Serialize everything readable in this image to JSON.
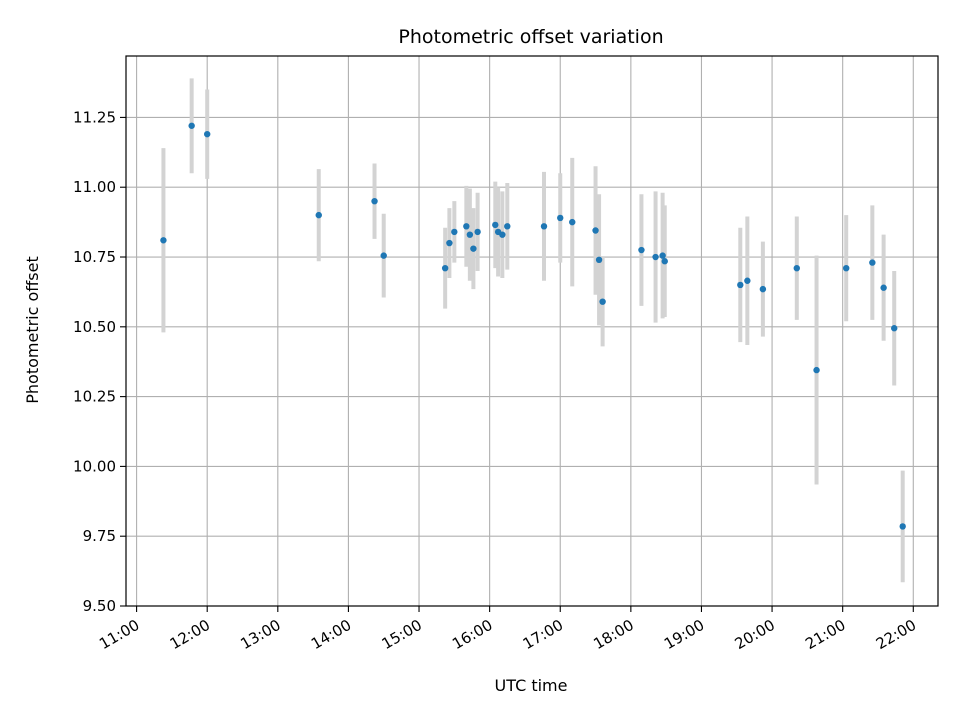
{
  "chart_data": {
    "type": "scatter",
    "title": "Photometric offset variation",
    "xlabel": "UTC time",
    "ylabel": "Photometric offset",
    "x_unit": "hours UTC",
    "xlim": [
      10.85,
      22.35
    ],
    "ylim": [
      9.5,
      11.47
    ],
    "x_ticks": [
      11,
      12,
      13,
      14,
      15,
      16,
      17,
      18,
      19,
      20,
      21,
      22
    ],
    "x_tick_labels": [
      "11:00",
      "12:00",
      "13:00",
      "14:00",
      "15:00",
      "16:00",
      "17:00",
      "18:00",
      "19:00",
      "20:00",
      "21:00",
      "22:00"
    ],
    "y_ticks": [
      9.5,
      9.75,
      10.0,
      10.25,
      10.5,
      10.75,
      11.0,
      11.25
    ],
    "y_tick_labels": [
      "9.50",
      "9.75",
      "10.00",
      "10.25",
      "10.50",
      "10.75",
      "11.00",
      "11.25"
    ],
    "grid": true,
    "colors": {
      "point": "#1f77b4",
      "errorbar": "#d3d3d3",
      "grid": "#b0b0b0"
    },
    "points": [
      {
        "x": 11.38,
        "y": 10.81,
        "err": 0.33
      },
      {
        "x": 11.78,
        "y": 11.22,
        "err": 0.17
      },
      {
        "x": 12.0,
        "y": 11.19,
        "err": 0.16
      },
      {
        "x": 13.58,
        "y": 10.9,
        "err": 0.165
      },
      {
        "x": 14.37,
        "y": 10.95,
        "err": 0.135
      },
      {
        "x": 14.5,
        "y": 10.755,
        "err": 0.15
      },
      {
        "x": 15.37,
        "y": 10.71,
        "err": 0.145
      },
      {
        "x": 15.43,
        "y": 10.8,
        "err": 0.125
      },
      {
        "x": 15.5,
        "y": 10.84,
        "err": 0.11
      },
      {
        "x": 15.67,
        "y": 10.86,
        "err": 0.145
      },
      {
        "x": 15.72,
        "y": 10.83,
        "err": 0.165
      },
      {
        "x": 15.77,
        "y": 10.78,
        "err": 0.145
      },
      {
        "x": 15.83,
        "y": 10.84,
        "err": 0.14
      },
      {
        "x": 16.08,
        "y": 10.865,
        "err": 0.155
      },
      {
        "x": 16.12,
        "y": 10.84,
        "err": 0.16
      },
      {
        "x": 16.18,
        "y": 10.83,
        "err": 0.155
      },
      {
        "x": 16.25,
        "y": 10.86,
        "err": 0.155
      },
      {
        "x": 16.77,
        "y": 10.86,
        "err": 0.195
      },
      {
        "x": 17.0,
        "y": 10.89,
        "err": 0.16
      },
      {
        "x": 17.17,
        "y": 10.875,
        "err": 0.23
      },
      {
        "x": 17.5,
        "y": 10.845,
        "err": 0.23
      },
      {
        "x": 17.55,
        "y": 10.74,
        "err": 0.235
      },
      {
        "x": 17.6,
        "y": 10.59,
        "err": 0.16
      },
      {
        "x": 18.15,
        "y": 10.775,
        "err": 0.2
      },
      {
        "x": 18.35,
        "y": 10.75,
        "err": 0.235
      },
      {
        "x": 18.45,
        "y": 10.755,
        "err": 0.225
      },
      {
        "x": 18.48,
        "y": 10.735,
        "err": 0.2
      },
      {
        "x": 19.55,
        "y": 10.65,
        "err": 0.205
      },
      {
        "x": 19.65,
        "y": 10.665,
        "err": 0.23
      },
      {
        "x": 19.87,
        "y": 10.635,
        "err": 0.17
      },
      {
        "x": 20.35,
        "y": 10.71,
        "err": 0.185
      },
      {
        "x": 20.63,
        "y": 10.345,
        "err": 0.41
      },
      {
        "x": 21.05,
        "y": 10.71,
        "err": 0.19
      },
      {
        "x": 21.42,
        "y": 10.73,
        "err": 0.205
      },
      {
        "x": 21.58,
        "y": 10.64,
        "err": 0.19
      },
      {
        "x": 21.73,
        "y": 10.495,
        "err": 0.205
      },
      {
        "x": 21.85,
        "y": 9.785,
        "err": 0.2
      }
    ]
  }
}
